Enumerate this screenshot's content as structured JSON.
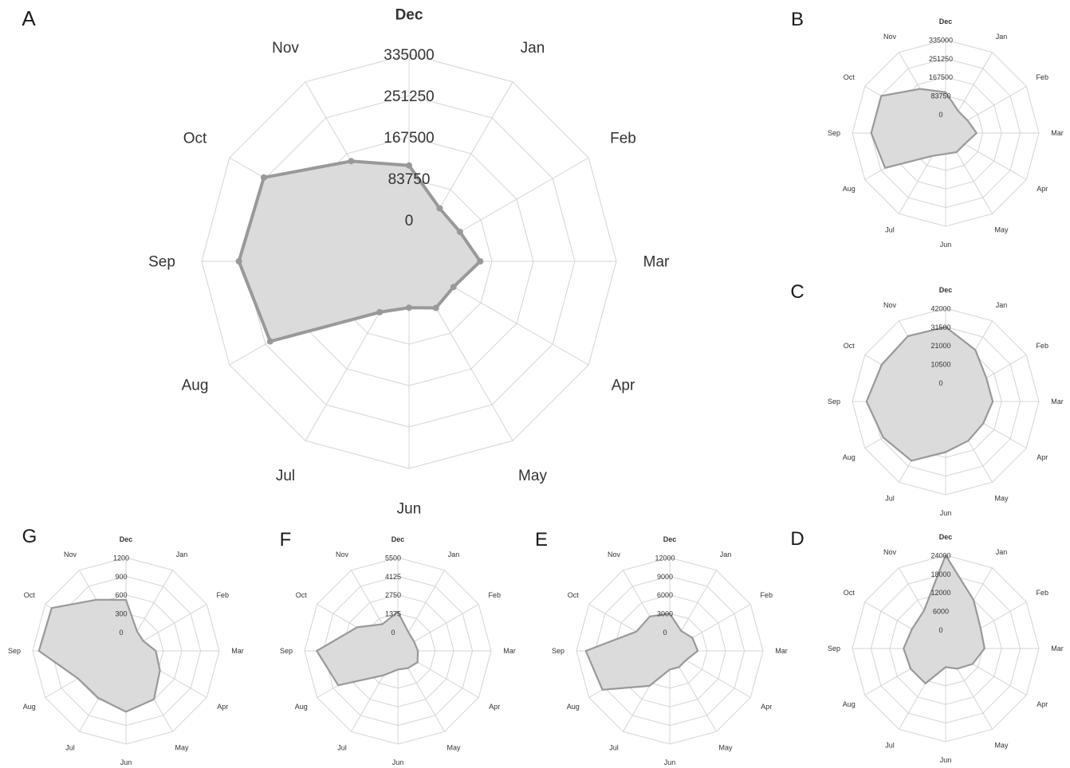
{
  "figure": {
    "panels": [
      "A",
      "B",
      "C",
      "D",
      "E",
      "F",
      "G"
    ],
    "background_color": "#ffffff",
    "grid_color": "#d4d4d4",
    "series_line_color": "#999999",
    "series_fill_color": "#d9d9d9"
  },
  "chart_data": [
    {
      "panel": "A",
      "type": "radar",
      "categories": [
        "Dec",
        "Jan",
        "Feb",
        "Mar",
        "Apr",
        "May",
        "Jun",
        "Jul",
        "Aug",
        "Sep",
        "Oct",
        "Nov"
      ],
      "ticks": [
        "0",
        "83750",
        "167500",
        "251250",
        "335000"
      ],
      "rlim": [
        -83750,
        335000
      ],
      "grid": true,
      "markers": true,
      "values": [
        110000,
        40000,
        35000,
        60000,
        20000,
        25000,
        10000,
        35000,
        240000,
        260000,
        255000,
        150000
      ]
    },
    {
      "panel": "B",
      "type": "radar",
      "categories": [
        "Dec",
        "Jan",
        "Feb",
        "Mar",
        "Apr",
        "May",
        "Jun",
        "Jul",
        "Aug",
        "Sep",
        "Oct",
        "Nov"
      ],
      "ticks": [
        "0",
        "83750",
        "167500",
        "251250",
        "335000"
      ],
      "rlim": [
        -83750,
        335000
      ],
      "grid": true,
      "markers": false,
      "values": [
        100000,
        30000,
        30000,
        55000,
        15000,
        15000,
        10000,
        35000,
        230000,
        250000,
        250000,
        145000
      ]
    },
    {
      "panel": "C",
      "type": "radar",
      "categories": [
        "Dec",
        "Jan",
        "Feb",
        "Mar",
        "Apr",
        "May",
        "Jun",
        "Jul",
        "Aug",
        "Sep",
        "Oct",
        "Nov"
      ],
      "ticks": [
        "0",
        "10500",
        "21000",
        "31500",
        "42000"
      ],
      "rlim": [
        -10500,
        42000
      ],
      "grid": true,
      "markers": false,
      "values": [
        31500,
        23000,
        16000,
        16000,
        14000,
        15000,
        18000,
        28000,
        30000,
        34000,
        31000,
        32000
      ]
    },
    {
      "panel": "D",
      "type": "radar",
      "categories": [
        "Dec",
        "Jan",
        "Feb",
        "Mar",
        "Apr",
        "May",
        "Jun",
        "Jul",
        "Aug",
        "Sep",
        "Oct",
        "Nov"
      ],
      "ticks": [
        "0",
        "6000",
        "12000",
        "18000",
        "24000"
      ],
      "rlim": [
        -6000,
        24000
      ],
      "grid": true,
      "markers": false,
      "values": [
        24000,
        12000,
        7000,
        6500,
        4000,
        1500,
        0,
        7000,
        7000,
        7500,
        6500,
        8000
      ]
    },
    {
      "panel": "E",
      "type": "radar",
      "categories": [
        "Dec",
        "Jan",
        "Feb",
        "Mar",
        "Apr",
        "May",
        "Jun",
        "Jul",
        "Aug",
        "Sep",
        "Oct",
        "Nov"
      ],
      "ticks": [
        "0",
        "3000",
        "6000",
        "9000",
        "12000"
      ],
      "rlim": [
        -3000,
        12000
      ],
      "grid": true,
      "markers": false,
      "values": [
        3000,
        700,
        1200,
        1500,
        0,
        0,
        0,
        3500,
        9500,
        10500,
        3200,
        3400
      ]
    },
    {
      "panel": "F",
      "type": "radar",
      "categories": [
        "Dec",
        "Jan",
        "Feb",
        "Mar",
        "Apr",
        "May",
        "Jun",
        "Jul",
        "Aug",
        "Sep",
        "Oct",
        "Nov"
      ],
      "ticks": [
        "0",
        "1375",
        "2750",
        "4125",
        "5500"
      ],
      "rlim": [
        -1375,
        5500
      ],
      "grid": true,
      "markers": false,
      "values": [
        1500,
        200,
        0,
        100,
        300,
        100,
        0,
        700,
        3700,
        4600,
        2100,
        900
      ]
    },
    {
      "panel": "G",
      "type": "radar",
      "categories": [
        "Dec",
        "Jan",
        "Feb",
        "Mar",
        "Apr",
        "May",
        "Jun",
        "Jul",
        "Aug",
        "Sep",
        "Oct",
        "Nov"
      ],
      "ticks": [
        "0",
        "300",
        "600",
        "900",
        "1200"
      ],
      "rlim": [
        -300,
        1200
      ],
      "grid": true,
      "markers": false,
      "values": [
        520,
        60,
        20,
        180,
        330,
        600,
        680,
        580,
        590,
        1100,
        1080,
        650
      ]
    }
  ]
}
